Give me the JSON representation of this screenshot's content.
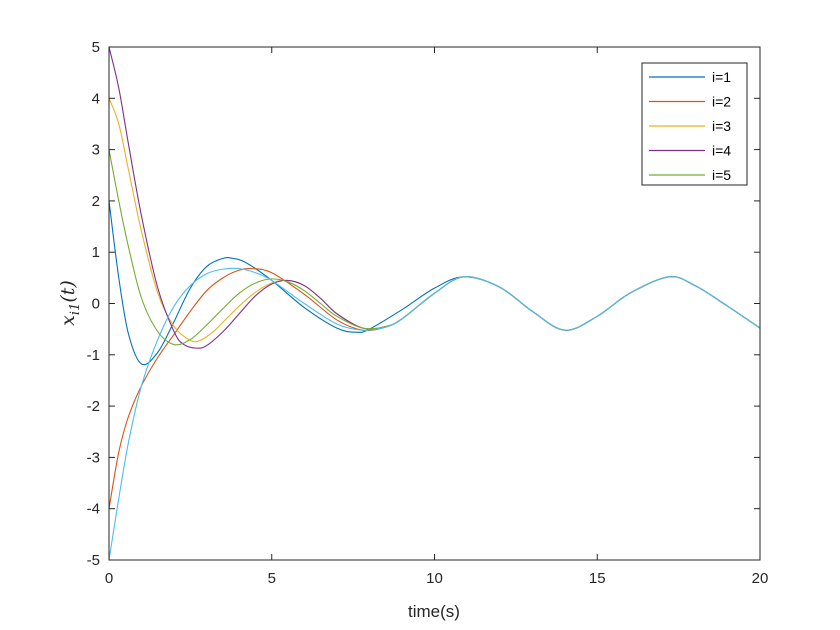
{
  "chart_data": {
    "type": "line",
    "xlabel": "time(s)",
    "ylabel": "x_{i1}(t)",
    "ylabel_parts": {
      "base": "x",
      "sub": "i1",
      "arg": "(t)"
    },
    "xlim": [
      0,
      20
    ],
    "ylim": [
      -5,
      5
    ],
    "x_ticks": [
      0,
      5,
      10,
      15,
      20
    ],
    "x_tick_labels": [
      "0",
      "5",
      "10",
      "15",
      "20"
    ],
    "y_ticks": [
      -5,
      -4,
      -3,
      -2,
      -1,
      0,
      1,
      2,
      3,
      4,
      5
    ],
    "y_tick_labels": [
      "-5",
      "-4",
      "-3",
      "-2",
      "-1",
      "0",
      "1",
      "2",
      "3",
      "4",
      "5"
    ],
    "grid": false,
    "legend_position": "top-right",
    "series": [
      {
        "name": "i=1",
        "color": "#0072BD",
        "x": [
          0,
          0.3,
          0.6,
          1.0,
          1.5,
          2.0,
          2.5,
          3.0,
          3.5,
          3.8,
          4.2,
          5.0,
          6.0,
          7.0,
          7.6,
          8.0,
          9.0,
          10.0,
          10.9,
          12.0,
          13.0,
          14.0,
          15.0,
          16.0,
          17.2,
          18.0,
          19.0,
          20.0
        ],
        "y": [
          2.0,
          0.5,
          -0.6,
          -1.18,
          -0.95,
          -0.35,
          0.3,
          0.72,
          0.88,
          0.88,
          0.8,
          0.45,
          -0.08,
          -0.48,
          -0.56,
          -0.5,
          -0.12,
          0.3,
          0.52,
          0.32,
          -0.15,
          -0.52,
          -0.25,
          0.2,
          0.52,
          0.35,
          -0.05,
          -0.48
        ]
      },
      {
        "name": "i=2",
        "color": "#D95319",
        "x": [
          0,
          0.3,
          0.6,
          1.0,
          1.5,
          2.0,
          2.5,
          3.0,
          3.5,
          4.0,
          4.4,
          5.0,
          6.0,
          7.0,
          7.8,
          8.5,
          9.0,
          10.0,
          10.9,
          12.0,
          13.0,
          14.0,
          15.0,
          16.0,
          17.2,
          18.0,
          19.0,
          20.0
        ],
        "y": [
          -4.0,
          -2.9,
          -2.2,
          -1.6,
          -1.05,
          -0.6,
          -0.15,
          0.25,
          0.5,
          0.65,
          0.68,
          0.6,
          0.18,
          -0.32,
          -0.52,
          -0.46,
          -0.3,
          0.2,
          0.52,
          0.32,
          -0.15,
          -0.52,
          -0.25,
          0.2,
          0.52,
          0.35,
          -0.05,
          -0.48
        ]
      },
      {
        "name": "i=3",
        "color": "#EDB120",
        "x": [
          0,
          0.3,
          0.6,
          1.0,
          1.5,
          2.0,
          2.5,
          2.8,
          3.2,
          3.6,
          4.0,
          4.5,
          5.0,
          5.5,
          6.0,
          6.5,
          7.0,
          7.8,
          8.5,
          9.0,
          10.0,
          10.9,
          12.0,
          13.0,
          14.0,
          15.0,
          16.0,
          17.2,
          18.0,
          19.0,
          20.0
        ],
        "y": [
          4.0,
          3.5,
          2.6,
          1.4,
          0.2,
          -0.45,
          -0.72,
          -0.72,
          -0.55,
          -0.3,
          -0.05,
          0.22,
          0.4,
          0.45,
          0.35,
          0.1,
          -0.2,
          -0.48,
          -0.45,
          -0.3,
          0.2,
          0.52,
          0.32,
          -0.15,
          -0.52,
          -0.25,
          0.2,
          0.52,
          0.35,
          -0.05,
          -0.48
        ]
      },
      {
        "name": "i=4",
        "color": "#7E2F8E",
        "x": [
          0,
          0.3,
          0.6,
          1.0,
          1.5,
          2.0,
          2.3,
          2.7,
          3.0,
          3.5,
          4.0,
          4.5,
          5.0,
          5.5,
          6.0,
          6.5,
          7.0,
          7.8,
          8.5,
          9.0,
          10.0,
          10.9,
          12.0,
          13.0,
          14.0,
          15.0,
          16.0,
          17.2,
          18.0,
          19.0,
          20.0
        ],
        "y": [
          5.0,
          4.2,
          3.1,
          1.7,
          0.3,
          -0.55,
          -0.8,
          -0.87,
          -0.82,
          -0.55,
          -0.2,
          0.15,
          0.38,
          0.45,
          0.35,
          0.1,
          -0.2,
          -0.48,
          -0.45,
          -0.3,
          0.2,
          0.52,
          0.32,
          -0.15,
          -0.52,
          -0.25,
          0.2,
          0.52,
          0.35,
          -0.05,
          -0.48
        ]
      },
      {
        "name": "i=5",
        "color": "#77AC30",
        "x": [
          0,
          0.3,
          0.6,
          1.0,
          1.5,
          2.0,
          2.5,
          3.0,
          3.5,
          4.0,
          4.5,
          5.0,
          5.5,
          6.0,
          6.5,
          7.0,
          7.8,
          8.5,
          9.0,
          10.0,
          10.9,
          12.0,
          13.0,
          14.0,
          15.0,
          16.0,
          17.2,
          18.0,
          19.0,
          20.0
        ],
        "y": [
          3.0,
          2.0,
          1.1,
          0.1,
          -0.55,
          -0.8,
          -0.7,
          -0.42,
          -0.1,
          0.2,
          0.4,
          0.48,
          0.42,
          0.25,
          0.0,
          -0.25,
          -0.48,
          -0.45,
          -0.3,
          0.2,
          0.52,
          0.32,
          -0.15,
          -0.52,
          -0.25,
          0.2,
          0.52,
          0.35,
          -0.05,
          -0.48
        ]
      },
      {
        "color": "#4DBEEE",
        "x": [
          0,
          0.3,
          0.6,
          1.0,
          1.5,
          2.0,
          2.5,
          3.0,
          3.5,
          4.0,
          4.5,
          5.0,
          6.0,
          7.0,
          7.8,
          8.5,
          9.0,
          10.0,
          10.9,
          12.0,
          13.0,
          14.0,
          15.0,
          16.0,
          17.2,
          18.0,
          19.0,
          20.0
        ],
        "y": [
          -5.0,
          -3.8,
          -2.7,
          -1.6,
          -0.7,
          -0.05,
          0.35,
          0.58,
          0.67,
          0.68,
          0.6,
          0.45,
          0.0,
          -0.4,
          -0.52,
          -0.46,
          -0.3,
          0.2,
          0.52,
          0.32,
          -0.15,
          -0.52,
          -0.25,
          0.2,
          0.52,
          0.35,
          -0.05,
          -0.48
        ]
      }
    ]
  }
}
